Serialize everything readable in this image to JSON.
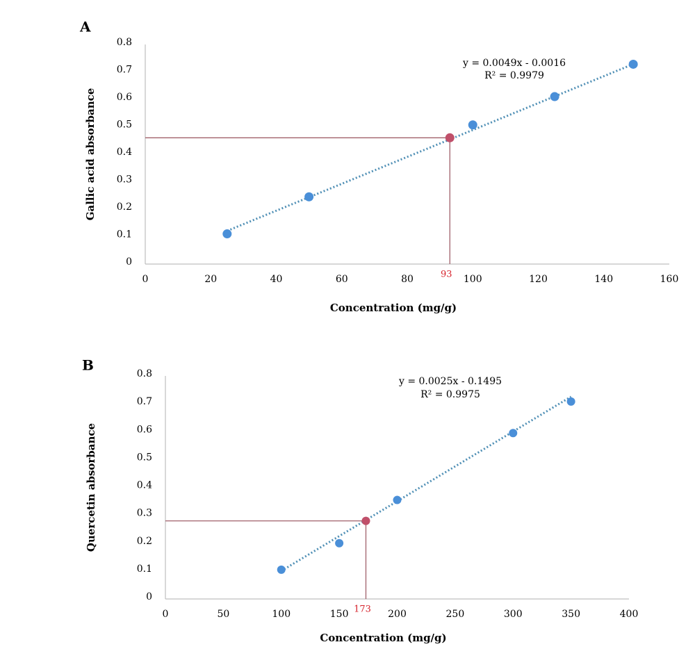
{
  "chart_data": [
    {
      "panel": "A",
      "type": "scatter",
      "xlabel": "Concentration (mg/g)",
      "ylabel": "Gallic acid absorbance",
      "xlim": [
        0,
        160
      ],
      "ylim": [
        0,
        0.8
      ],
      "xticks": [
        0,
        20,
        40,
        60,
        80,
        100,
        120,
        140,
        160
      ],
      "xtick_labels": [
        "0",
        "20",
        "40",
        "60",
        "80",
        "100",
        "120",
        "140",
        "160"
      ],
      "yticks": [
        0,
        0.1,
        0.2,
        0.3,
        0.4,
        0.5,
        0.6,
        0.7,
        0.8
      ],
      "ytick_labels": [
        "0",
        "0.1",
        "0.2",
        "0.3",
        "0.4",
        "0.5",
        "0.6",
        "0.7",
        "0.8"
      ],
      "grid": false,
      "points": {
        "x": [
          25,
          50,
          100,
          125,
          149
        ],
        "y": [
          0.11,
          0.245,
          0.507,
          0.61,
          0.728
        ]
      },
      "trendline": {
        "style": "dotted",
        "x": [
          25,
          149
        ],
        "y": [
          0.1209,
          0.7285
        ]
      },
      "equation": "y = 0.0049x - 0.0016",
      "r2": "R² = 0.9979",
      "highlight": {
        "x": 93,
        "y": 0.46,
        "label": "93"
      },
      "colors": {
        "points": "#4a8fd8",
        "trendline": "#4f8fb5",
        "highlight": "#c0506a",
        "guide": "#a0606a",
        "annotation": "#d6202a"
      }
    },
    {
      "panel": "B",
      "type": "scatter",
      "xlabel": "Concentration (mg/g)",
      "ylabel": "Quercetin absorbance",
      "xlim": [
        0,
        400
      ],
      "ylim": [
        0,
        0.8
      ],
      "xticks": [
        0,
        50,
        100,
        150,
        200,
        250,
        300,
        350,
        400
      ],
      "xtick_labels": [
        "0",
        "50",
        "100",
        "150",
        "200",
        "250",
        "300",
        "350",
        "400"
      ],
      "yticks": [
        0,
        0.1,
        0.2,
        0.3,
        0.4,
        0.5,
        0.6,
        0.7,
        0.8
      ],
      "ytick_labels": [
        "0",
        "0.1",
        "0.2",
        "0.3",
        "0.4",
        "0.5",
        "0.6",
        "0.7",
        "0.8"
      ],
      "grid": false,
      "points": {
        "x": [
          100,
          150,
          200,
          300,
          350
        ],
        "y": [
          0.105,
          0.2,
          0.355,
          0.595,
          0.708
        ]
      },
      "trendline": {
        "style": "dotted",
        "x": [
          100,
          350
        ],
        "y": [
          0.1005,
          0.7255
        ]
      },
      "equation": "y = 0.0025x - 0.1495",
      "r2": "R² = 0.9975",
      "highlight": {
        "x": 173,
        "y": 0.28,
        "label": "173"
      },
      "colors": {
        "points": "#4a8fd8",
        "trendline": "#4f8fb5",
        "highlight": "#c0506a",
        "guide": "#a0606a",
        "annotation": "#d6202a"
      }
    }
  ]
}
